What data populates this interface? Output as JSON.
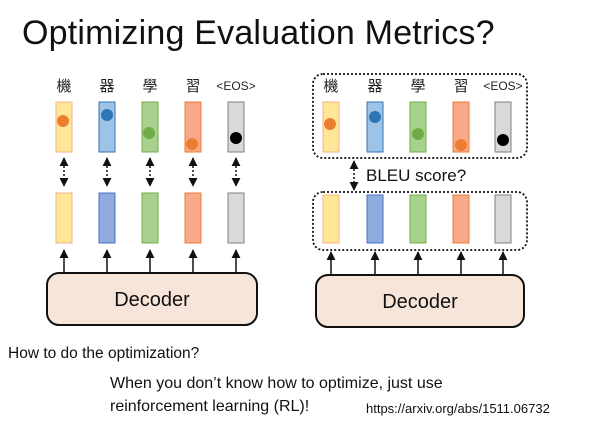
{
  "slide": {
    "title": "Optimizing Evaluation Metrics?",
    "question": "How to do the optimization?",
    "answer_line1": "When you don’t know how to optimize, just use",
    "answer_line2": "reinforcement learning (RL)!",
    "reference_url": "https://arxiv.org/abs/1511.06732"
  },
  "diagram": {
    "tokens": [
      "機",
      "器",
      "學",
      "習",
      "<EOS>"
    ],
    "left_decoder_label": "Decoder",
    "right_decoder_label": "Decoder",
    "metric_label": "BLEU score?"
  },
  "colors": {
    "yellow_fill": "#FFE699",
    "yellow_stroke": "#F4B183",
    "blue_fill": "#9DC3E6",
    "blue_stroke": "#2E75B6",
    "green_fill": "#A9D18E",
    "green_stroke": "#70AD47",
    "red_fill": "#F8A98A",
    "red_stroke": "#ED7D31",
    "gray_fill": "#D9D9D9",
    "gray_stroke": "#7F7F7F",
    "blue_dark_fill": "#8FAADC",
    "blue_dark_stroke": "#4472C4",
    "decoder_fill": "#F8E5DA",
    "dot_orange": "#ED7D31",
    "dot_blue": "#2E75B6",
    "dot_green": "#70AD47",
    "dot_black": "#000000"
  }
}
